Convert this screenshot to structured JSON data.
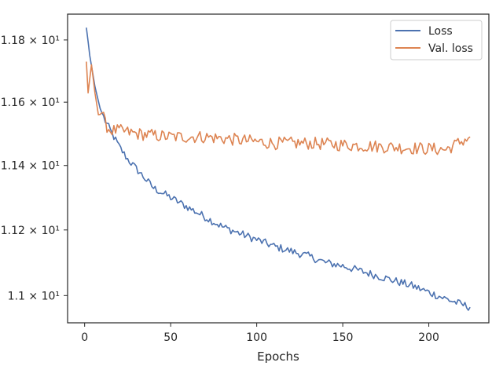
{
  "chart_data": {
    "type": "line",
    "title": "",
    "xlabel": "Epochs",
    "ylabel": "",
    "xlim": [
      -9.9,
      234.9
    ],
    "ylim": [
      10.918,
      11.884
    ],
    "y_scale": "log",
    "grid": false,
    "legend_position": "top-right",
    "x_ticks": [
      0,
      50,
      100,
      150,
      200
    ],
    "x_tick_labels": [
      "0",
      "50",
      "100",
      "150",
      "200"
    ],
    "y_ticks": [
      11.0,
      11.2,
      11.4,
      11.6,
      11.8
    ],
    "y_tick_labels": [
      "1.1 × 10¹",
      "1.12 × 10¹",
      "1.14 × 10¹",
      "1.16 × 10¹",
      "1.18 × 10¹"
    ],
    "series": [
      {
        "name": "Loss",
        "color": "#4c72b0",
        "points": [
          [
            1,
            11.84
          ],
          [
            3,
            11.75
          ],
          [
            6,
            11.65
          ],
          [
            9,
            11.58
          ],
          [
            12,
            11.54
          ],
          [
            15,
            11.51
          ],
          [
            20,
            11.46
          ],
          [
            25,
            11.42
          ],
          [
            30,
            11.39
          ],
          [
            40,
            11.33
          ],
          [
            50,
            11.3
          ],
          [
            60,
            11.27
          ],
          [
            70,
            11.24
          ],
          [
            80,
            11.21
          ],
          [
            90,
            11.19
          ],
          [
            100,
            11.17
          ],
          [
            110,
            11.15
          ],
          [
            120,
            11.135
          ],
          [
            130,
            11.12
          ],
          [
            140,
            11.1
          ],
          [
            150,
            11.09
          ],
          [
            160,
            11.075
          ],
          [
            170,
            11.06
          ],
          [
            180,
            11.045
          ],
          [
            190,
            11.03
          ],
          [
            200,
            11.01
          ],
          [
            210,
            10.99
          ],
          [
            218,
            10.975
          ],
          [
            224,
            10.965
          ]
        ]
      },
      {
        "name": "Val. loss",
        "color": "#dd8452",
        "points": [
          [
            1,
            11.73
          ],
          [
            2,
            11.63
          ],
          [
            4,
            11.72
          ],
          [
            6,
            11.63
          ],
          [
            8,
            11.56
          ],
          [
            10,
            11.57
          ],
          [
            12,
            11.53
          ],
          [
            15,
            11.51
          ],
          [
            20,
            11.51
          ],
          [
            30,
            11.5
          ],
          [
            50,
            11.49
          ],
          [
            70,
            11.49
          ],
          [
            90,
            11.48
          ],
          [
            110,
            11.47
          ],
          [
            130,
            11.47
          ],
          [
            150,
            11.465
          ],
          [
            170,
            11.46
          ],
          [
            190,
            11.455
          ],
          [
            210,
            11.45
          ],
          [
            224,
            11.49
          ]
        ]
      }
    ]
  }
}
